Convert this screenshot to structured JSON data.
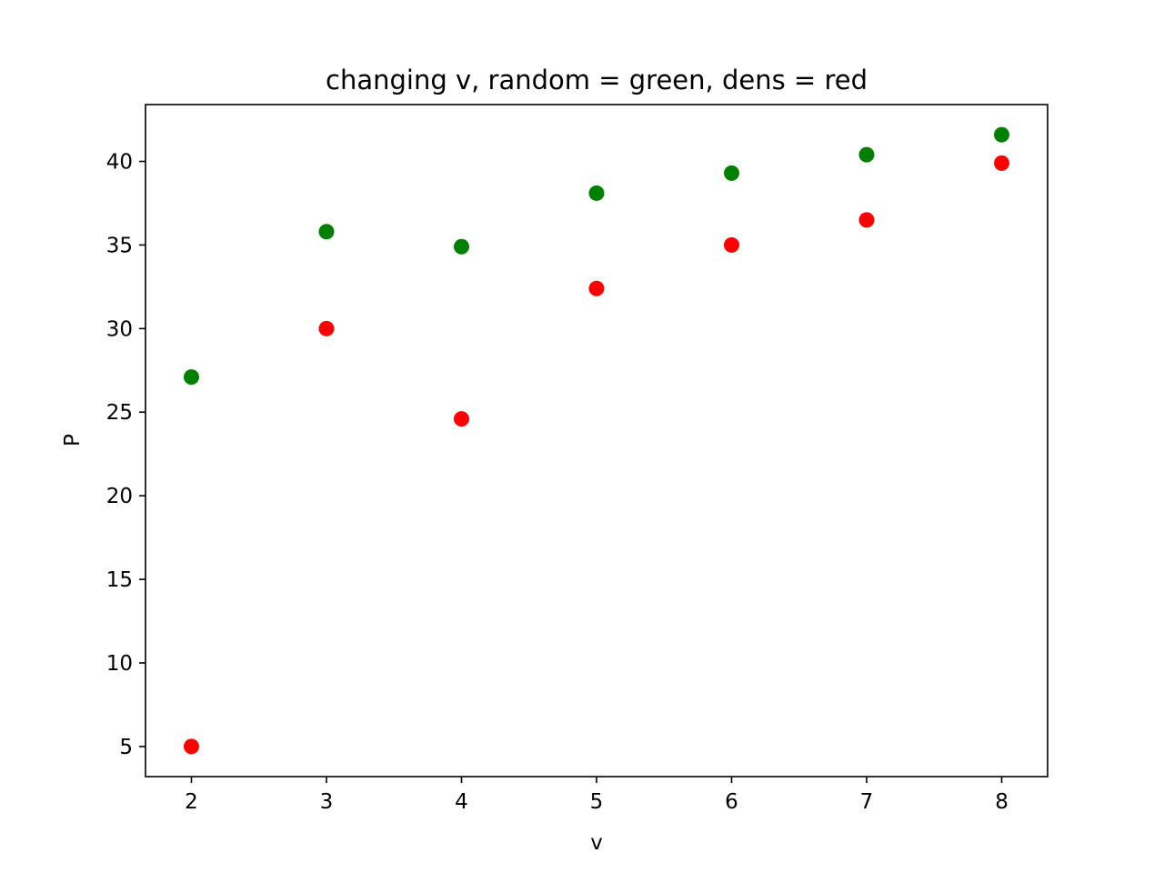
{
  "chart_data": {
    "type": "scatter",
    "title": "changing v, random = green, dens = red",
    "xlabel": "v",
    "ylabel": "P",
    "xlim": [
      1.66,
      8.34
    ],
    "ylim": [
      3.2,
      43.4
    ],
    "xticks": [
      2,
      3,
      4,
      5,
      6,
      7,
      8
    ],
    "yticks": [
      5,
      10,
      15,
      20,
      25,
      30,
      35,
      40
    ],
    "grid": false,
    "legend": "none",
    "series": [
      {
        "color": "#008000",
        "x": [
          2,
          3,
          4,
          5,
          6,
          7,
          8
        ],
        "y": [
          27.1,
          35.8,
          34.9,
          38.1,
          39.3,
          40.4,
          41.6
        ]
      },
      {
        "color": "#ff0000",
        "x": [
          2,
          3,
          4,
          5,
          6,
          7,
          8
        ],
        "y": [
          5.0,
          30.0,
          24.6,
          32.4,
          35.0,
          36.5,
          39.9
        ]
      }
    ]
  }
}
